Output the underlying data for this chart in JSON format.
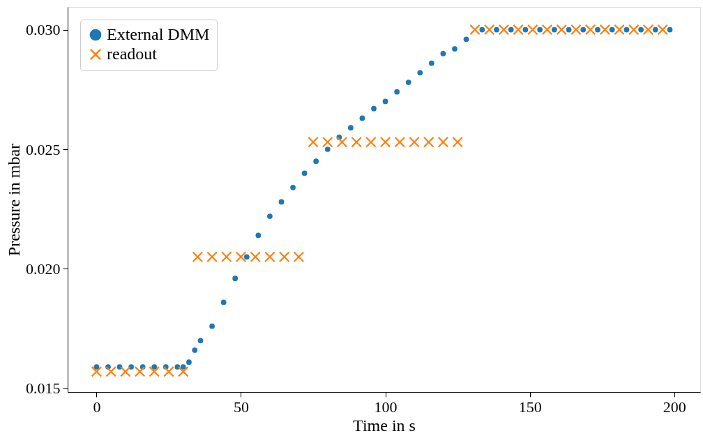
{
  "chart_data": {
    "type": "scatter",
    "xlabel": "Time in s",
    "ylabel": "Pressure in mbar",
    "xlim": [
      -10,
      209
    ],
    "ylim": [
      0.01485,
      0.03095
    ],
    "xticks": [
      0,
      50,
      100,
      150,
      200
    ],
    "yticks": [
      {
        "value": 0.015,
        "label": "0.015"
      },
      {
        "value": 0.02,
        "label": "0.020"
      },
      {
        "value": 0.025,
        "label": "0.025"
      },
      {
        "value": 0.03,
        "label": "0.030"
      }
    ],
    "grid": false,
    "legend": "top left",
    "series": [
      {
        "name": "External DMM",
        "color": "#1f77b4",
        "marker": "circle",
        "x": [
          0,
          4,
          8,
          12,
          16,
          20,
          24,
          28,
          30,
          32,
          34,
          36,
          40,
          44,
          48,
          52,
          56,
          60,
          64,
          68,
          72,
          76,
          80,
          84,
          88,
          92,
          96,
          100,
          104,
          108,
          112,
          116,
          120,
          124,
          128,
          133.5,
          138.5,
          143.5,
          148.5,
          153.5,
          158.5,
          163.5,
          168.5,
          173.5,
          178.5,
          183.5,
          188.5,
          193.5,
          198.5
        ],
        "values": [
          0.0159,
          0.0159,
          0.0159,
          0.0159,
          0.0159,
          0.0159,
          0.0159,
          0.0159,
          0.0159,
          0.0161,
          0.0166,
          0.017,
          0.0176,
          0.0186,
          0.0196,
          0.0205,
          0.0214,
          0.0222,
          0.0228,
          0.0234,
          0.024,
          0.0245,
          0.025,
          0.0255,
          0.0259,
          0.0263,
          0.0267,
          0.027,
          0.0274,
          0.0278,
          0.0282,
          0.0286,
          0.029,
          0.0292,
          0.0296,
          0.03,
          0.03,
          0.03,
          0.03,
          0.03,
          0.03,
          0.03,
          0.03,
          0.03,
          0.03,
          0.03,
          0.03,
          0.03,
          0.03
        ]
      },
      {
        "name": "readout",
        "color": "#ff7f0e",
        "marker": "cross",
        "x": [
          0,
          5,
          10,
          15,
          20,
          25,
          30,
          35,
          40,
          45,
          50,
          55,
          60,
          65,
          70,
          75,
          80,
          85,
          90,
          95,
          100,
          105,
          110,
          115,
          120,
          125,
          131,
          136,
          141,
          146,
          151,
          156,
          161,
          166,
          171,
          176,
          181,
          186,
          191,
          196
        ],
        "values": [
          0.0157,
          0.0157,
          0.0157,
          0.0157,
          0.0157,
          0.0157,
          0.0157,
          0.0205,
          0.0205,
          0.0205,
          0.0205,
          0.0205,
          0.0205,
          0.0205,
          0.0205,
          0.0253,
          0.0253,
          0.0253,
          0.0253,
          0.0253,
          0.0253,
          0.0253,
          0.0253,
          0.0253,
          0.0253,
          0.0253,
          0.03,
          0.03,
          0.03,
          0.03,
          0.03,
          0.03,
          0.03,
          0.03,
          0.03,
          0.03,
          0.03,
          0.03,
          0.03,
          0.03
        ]
      }
    ]
  }
}
